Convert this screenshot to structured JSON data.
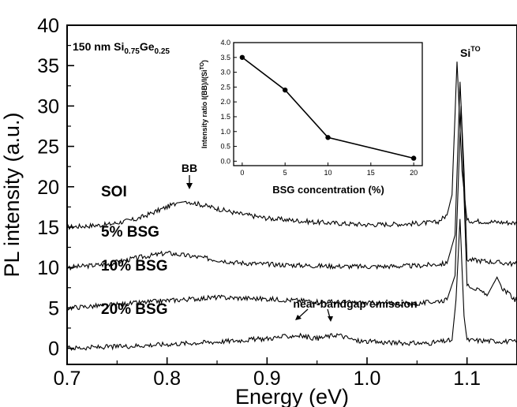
{
  "chart_data": [
    {
      "type": "line",
      "xlabel": "Energy (eV)",
      "ylabel": "PL intensity (a.u.)",
      "xlim": [
        0.7,
        1.15
      ],
      "ylim": [
        -2,
        40
      ],
      "xticks": [
        0.7,
        0.8,
        0.9,
        1.0,
        1.1
      ],
      "xtick_labels": [
        "0.7",
        "0.8",
        "0.9",
        "1.0",
        "1.1"
      ],
      "yticks": [
        0,
        5,
        10,
        15,
        20,
        25,
        30,
        35,
        40
      ],
      "ytick_labels": [
        "0",
        "5",
        "10",
        "15",
        "20",
        "25",
        "30",
        "35",
        "40"
      ],
      "grid": false,
      "sample_label": {
        "main": "150 nm Si",
        "sub1": "0.75",
        "mid": "Ge",
        "sub2": "0.25"
      },
      "annotations": {
        "bb": "BB",
        "near_bandgap": "near-bandgap emission",
        "si_to_base": "Si",
        "si_to_sup": "TO"
      },
      "series": [
        {
          "name": "SOI",
          "x": [
            0.7,
            0.74,
            0.77,
            0.79,
            0.81,
            0.82,
            0.84,
            0.87,
            0.9,
            0.95,
            1.0,
            1.04,
            1.07,
            1.08,
            1.085,
            1.09,
            1.092,
            1.095,
            1.1,
            1.15
          ],
          "y": [
            15.0,
            15.3,
            16.0,
            17.0,
            18.0,
            18.2,
            17.6,
            16.7,
            16.1,
            15.6,
            15.3,
            15.4,
            15.6,
            16.5,
            19.0,
            35.5,
            30.0,
            22.0,
            15.8,
            15.5
          ]
        },
        {
          "name": "5% BSG",
          "x": [
            0.7,
            0.74,
            0.77,
            0.8,
            0.83,
            0.87,
            0.9,
            0.95,
            1.0,
            1.05,
            1.08,
            1.088,
            1.093,
            1.097,
            1.1,
            1.15
          ],
          "y": [
            10.0,
            10.4,
            11.2,
            11.8,
            11.3,
            10.6,
            10.4,
            10.2,
            10.1,
            10.2,
            10.5,
            14.0,
            33.0,
            22.0,
            11.0,
            10.4
          ]
        },
        {
          "name": "10% BSG",
          "x": [
            0.7,
            0.75,
            0.8,
            0.85,
            0.9,
            0.95,
            1.0,
            1.05,
            1.08,
            1.088,
            1.094,
            1.1,
            1.12,
            1.13,
            1.135,
            1.15
          ],
          "y": [
            5.0,
            5.4,
            5.9,
            6.3,
            6.1,
            5.8,
            5.6,
            5.5,
            6.0,
            9.0,
            30.0,
            8.0,
            6.5,
            8.8,
            7.5,
            5.8
          ]
        },
        {
          "name": "20% BSG",
          "x": [
            0.7,
            0.75,
            0.8,
            0.85,
            0.9,
            0.93,
            0.95,
            0.97,
            0.99,
            1.02,
            1.06,
            1.085,
            1.089,
            1.093,
            1.097,
            1.1,
            1.15
          ],
          "y": [
            0.0,
            0.2,
            0.5,
            0.8,
            1.2,
            1.6,
            1.2,
            1.7,
            0.9,
            0.7,
            0.6,
            1.0,
            6.0,
            16.0,
            4.0,
            1.0,
            0.8
          ]
        }
      ]
    },
    {
      "type": "line",
      "xlabel": "BSG concentration (%)",
      "ylabel": "Intensity ratio I(BB)/I(Si",
      "ylabel_sup": "TO",
      "ylabel_close": ")",
      "xlim": [
        -1,
        21
      ],
      "ylim": [
        -0.15,
        4.0
      ],
      "xticks": [
        0,
        5,
        10,
        15,
        20
      ],
      "xtick_labels": [
        "0",
        "5",
        "10",
        "15",
        "20"
      ],
      "yticks": [
        0.0,
        0.5,
        1.0,
        1.5,
        2.0,
        2.5,
        3.0,
        3.5,
        4.0
      ],
      "ytick_labels": [
        "0.0",
        "0.5",
        "1.0",
        "1.5",
        "2.0",
        "2.5",
        "3.0",
        "3.5",
        "4.0"
      ],
      "grid": false,
      "series": [
        {
          "x": [
            0,
            5,
            10,
            20
          ],
          "y": [
            3.5,
            2.4,
            0.8,
            0.1
          ]
        }
      ]
    }
  ]
}
